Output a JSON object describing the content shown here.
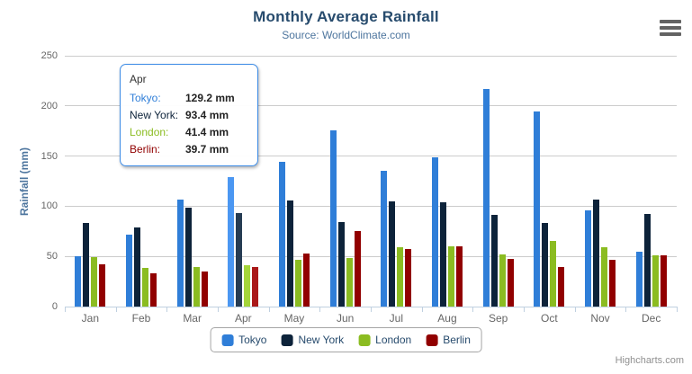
{
  "header": {
    "title": "Monthly Average Rainfall",
    "subtitle": "Source: WorldClimate.com"
  },
  "chart_data": {
    "type": "bar",
    "title": "Monthly Average Rainfall",
    "subtitle": "Source: WorldClimate.com",
    "xlabel": "",
    "ylabel": "Rainfall (mm)",
    "ylim": [
      0,
      250
    ],
    "ytick_interval": 50,
    "yticks": [
      0,
      50,
      100,
      150,
      200,
      250
    ],
    "grid": true,
    "legend_position": "bottom",
    "categories": [
      "Jan",
      "Feb",
      "Mar",
      "Apr",
      "May",
      "Jun",
      "Jul",
      "Aug",
      "Sep",
      "Oct",
      "Nov",
      "Dec"
    ],
    "hovered_category": "Apr",
    "series": [
      {
        "name": "Tokyo",
        "color": "#2f7ed8",
        "hover_color": "#4b97f2",
        "values": [
          49.9,
          71.5,
          106.4,
          129.2,
          144.0,
          176.0,
          135.6,
          148.5,
          216.4,
          194.1,
          95.6,
          54.4
        ]
      },
      {
        "name": "New York",
        "color": "#0d233a",
        "hover_color": "#263c53",
        "values": [
          83.6,
          78.8,
          98.5,
          93.4,
          106.0,
          84.5,
          105.0,
          104.3,
          91.2,
          83.5,
          106.6,
          92.3
        ]
      },
      {
        "name": "London",
        "color": "#8bbc21",
        "hover_color": "#a4d53a",
        "values": [
          48.9,
          38.8,
          39.3,
          41.4,
          47.0,
          48.3,
          59.0,
          59.6,
          52.4,
          65.2,
          59.3,
          51.2
        ]
      },
      {
        "name": "Berlin",
        "color": "#910000",
        "hover_color": "#aa1919",
        "values": [
          42.4,
          33.2,
          34.5,
          39.7,
          52.6,
          75.5,
          57.4,
          60.4,
          47.6,
          39.1,
          46.8,
          51.1
        ]
      }
    ]
  },
  "tooltip": {
    "header": "Apr",
    "rows": [
      {
        "label": "Tokyo:",
        "value": "129.2 mm",
        "color": "#2f7ed8"
      },
      {
        "label": "New York:",
        "value": "93.4 mm",
        "color": "#0d233a"
      },
      {
        "label": "London:",
        "value": "41.4 mm",
        "color": "#8bbc21"
      },
      {
        "label": "Berlin:",
        "value": "39.7 mm",
        "color": "#910000"
      }
    ]
  },
  "legend": {
    "items": [
      "Tokyo",
      "New York",
      "London",
      "Berlin"
    ]
  },
  "credits": "Highcharts.com",
  "colors": {
    "title": "#274b6d",
    "subtitle": "#4d759e",
    "axis_title": "#4d759e",
    "tick_label": "#666666",
    "gridline": "#cccccc",
    "axis_line": "#c0d0e0",
    "tooltip_border": "#3c8be5",
    "legend_text": "#274b6d",
    "credits": "#909090"
  }
}
